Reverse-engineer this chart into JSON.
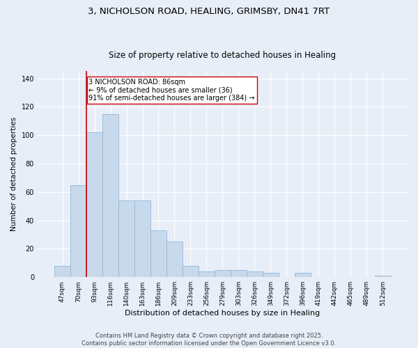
{
  "title_line1": "3, NICHOLSON ROAD, HEALING, GRIMSBY, DN41 7RT",
  "title_line2": "Size of property relative to detached houses in Healing",
  "xlabel": "Distribution of detached houses by size in Healing",
  "ylabel": "Number of detached properties",
  "bar_color": "#c9d9ec",
  "bar_edge_color": "#8fb8d8",
  "categories": [
    "47sqm",
    "70sqm",
    "93sqm",
    "116sqm",
    "140sqm",
    "163sqm",
    "186sqm",
    "209sqm",
    "233sqm",
    "256sqm",
    "279sqm",
    "303sqm",
    "326sqm",
    "349sqm",
    "372sqm",
    "396sqm",
    "419sqm",
    "442sqm",
    "465sqm",
    "489sqm",
    "512sqm"
  ],
  "values": [
    8,
    65,
    102,
    115,
    54,
    54,
    33,
    25,
    8,
    4,
    5,
    5,
    4,
    3,
    0,
    3,
    0,
    0,
    0,
    0,
    1
  ],
  "ylim": [
    0,
    145
  ],
  "yticks": [
    0,
    20,
    40,
    60,
    80,
    100,
    120,
    140
  ],
  "vline_x": 1.5,
  "vline_color": "#cc0000",
  "annotation_text": "3 NICHOLSON ROAD: 86sqm\n← 9% of detached houses are smaller (36)\n91% of semi-detached houses are larger (384) →",
  "annotation_box_color": "#ffffff",
  "annotation_box_edge": "#cc0000",
  "background_color": "#e8eef8",
  "plot_background": "#e8eef8",
  "grid_color": "#ffffff",
  "footer_line1": "Contains HM Land Registry data © Crown copyright and database right 2025.",
  "footer_line2": "Contains public sector information licensed under the Open Government Licence v3.0.",
  "title_fontsize": 9.5,
  "subtitle_fontsize": 8.5,
  "tick_fontsize": 6.5,
  "ylabel_fontsize": 7.5,
  "xlabel_fontsize": 8,
  "footer_fontsize": 6,
  "annotation_fontsize": 7
}
